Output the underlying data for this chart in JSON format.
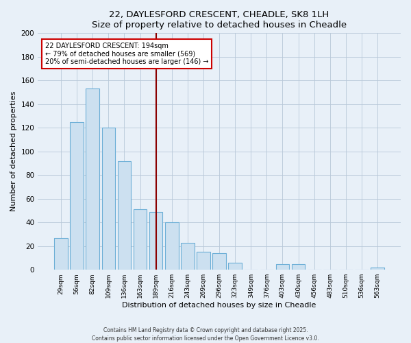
{
  "title": "22, DAYLESFORD CRESCENT, CHEADLE, SK8 1LH",
  "subtitle": "Size of property relative to detached houses in Cheadle",
  "xlabel": "Distribution of detached houses by size in Cheadle",
  "ylabel": "Number of detached properties",
  "categories": [
    "29sqm",
    "56sqm",
    "82sqm",
    "109sqm",
    "136sqm",
    "163sqm",
    "189sqm",
    "216sqm",
    "243sqm",
    "269sqm",
    "296sqm",
    "323sqm",
    "349sqm",
    "376sqm",
    "403sqm",
    "430sqm",
    "456sqm",
    "483sqm",
    "510sqm",
    "536sqm",
    "563sqm"
  ],
  "values": [
    27,
    125,
    153,
    120,
    92,
    51,
    49,
    40,
    23,
    15,
    14,
    6,
    0,
    0,
    5,
    5,
    0,
    0,
    0,
    0,
    2
  ],
  "bar_color": "#cce0f0",
  "bar_edge_color": "#6baed6",
  "vline_x_index": 6,
  "vline_color": "#8b0000",
  "annotation_title": "22 DAYLESFORD CRESCENT: 194sqm",
  "annotation_line1": "← 79% of detached houses are smaller (569)",
  "annotation_line2": "20% of semi-detached houses are larger (146) →",
  "annotation_box_edge": "#cc0000",
  "ylim": [
    0,
    200
  ],
  "yticks": [
    0,
    20,
    40,
    60,
    80,
    100,
    120,
    140,
    160,
    180,
    200
  ],
  "footer1": "Contains HM Land Registry data © Crown copyright and database right 2025.",
  "footer2": "Contains public sector information licensed under the Open Government Licence v3.0.",
  "bg_color": "#e8f0f8",
  "plot_bg_color": "#e8f0f8",
  "grid_color": "#b8c8d8"
}
